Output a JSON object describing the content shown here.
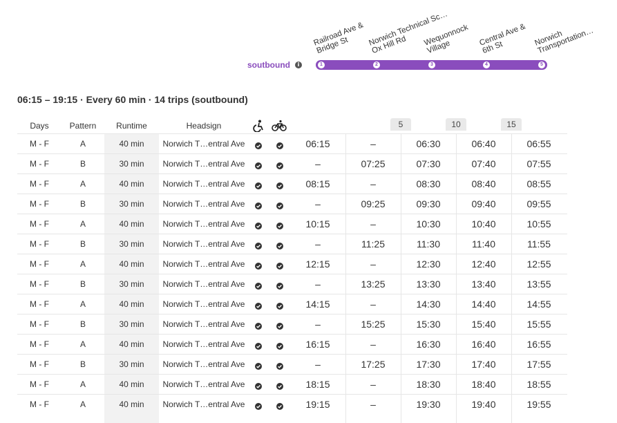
{
  "route": {
    "direction_label": "soutbound",
    "info_icon": "info-icon",
    "stops": [
      {
        "num": "1",
        "label_line1": "Railroad Ave &",
        "label_line2": "Bridge St"
      },
      {
        "num": "2",
        "label_line1": "Norwich Technical Sc…",
        "label_line2": "Ox Hill Rd"
      },
      {
        "num": "3",
        "label_line1": "Wequonnock",
        "label_line2": "Village"
      },
      {
        "num": "4",
        "label_line1": "Central Ave &",
        "label_line2": "6th St"
      },
      {
        "num": "5",
        "label_line1": "Norwich",
        "label_line2": "Transportation…"
      }
    ],
    "accent_color": "#8a4dbd"
  },
  "summary": "06:15 – 19:15 · Every 60 min · 14 trips (soutbound)",
  "table": {
    "headers": {
      "days": "Days",
      "pattern": "Pattern",
      "runtime": "Runtime",
      "headsign": "Headsign",
      "wheelchair_icon": "wheelchair-icon",
      "bike_icon": "bicycle-icon"
    },
    "ticks": [
      "5",
      "10",
      "15"
    ],
    "rows": [
      {
        "days": "M - F",
        "pattern": "A",
        "runtime": "40 min",
        "headsign": "Norwich T…entral Ave",
        "t1": "06:15",
        "t2": "–",
        "t3": "06:30",
        "t4": "06:40",
        "t5": "06:55"
      },
      {
        "days": "M - F",
        "pattern": "B",
        "runtime": "30 min",
        "headsign": "Norwich T…entral Ave",
        "t1": "–",
        "t2": "07:25",
        "t3": "07:30",
        "t4": "07:40",
        "t5": "07:55"
      },
      {
        "days": "M - F",
        "pattern": "A",
        "runtime": "40 min",
        "headsign": "Norwich T…entral Ave",
        "t1": "08:15",
        "t2": "–",
        "t3": "08:30",
        "t4": "08:40",
        "t5": "08:55"
      },
      {
        "days": "M - F",
        "pattern": "B",
        "runtime": "30 min",
        "headsign": "Norwich T…entral Ave",
        "t1": "–",
        "t2": "09:25",
        "t3": "09:30",
        "t4": "09:40",
        "t5": "09:55"
      },
      {
        "days": "M - F",
        "pattern": "A",
        "runtime": "40 min",
        "headsign": "Norwich T…entral Ave",
        "t1": "10:15",
        "t2": "–",
        "t3": "10:30",
        "t4": "10:40",
        "t5": "10:55"
      },
      {
        "days": "M - F",
        "pattern": "B",
        "runtime": "30 min",
        "headsign": "Norwich T…entral Ave",
        "t1": "–",
        "t2": "11:25",
        "t3": "11:30",
        "t4": "11:40",
        "t5": "11:55"
      },
      {
        "days": "M - F",
        "pattern": "A",
        "runtime": "40 min",
        "headsign": "Norwich T…entral Ave",
        "t1": "12:15",
        "t2": "–",
        "t3": "12:30",
        "t4": "12:40",
        "t5": "12:55"
      },
      {
        "days": "M - F",
        "pattern": "B",
        "runtime": "30 min",
        "headsign": "Norwich T…entral Ave",
        "t1": "–",
        "t2": "13:25",
        "t3": "13:30",
        "t4": "13:40",
        "t5": "13:55"
      },
      {
        "days": "M - F",
        "pattern": "A",
        "runtime": "40 min",
        "headsign": "Norwich T…entral Ave",
        "t1": "14:15",
        "t2": "–",
        "t3": "14:30",
        "t4": "14:40",
        "t5": "14:55"
      },
      {
        "days": "M - F",
        "pattern": "B",
        "runtime": "30 min",
        "headsign": "Norwich T…entral Ave",
        "t1": "–",
        "t2": "15:25",
        "t3": "15:30",
        "t4": "15:40",
        "t5": "15:55"
      },
      {
        "days": "M - F",
        "pattern": "A",
        "runtime": "40 min",
        "headsign": "Norwich T…entral Ave",
        "t1": "16:15",
        "t2": "–",
        "t3": "16:30",
        "t4": "16:40",
        "t5": "16:55"
      },
      {
        "days": "M - F",
        "pattern": "B",
        "runtime": "30 min",
        "headsign": "Norwich T…entral Ave",
        "t1": "–",
        "t2": "17:25",
        "t3": "17:30",
        "t4": "17:40",
        "t5": "17:55"
      },
      {
        "days": "M - F",
        "pattern": "A",
        "runtime": "40 min",
        "headsign": "Norwich T…entral Ave",
        "t1": "18:15",
        "t2": "–",
        "t3": "18:30",
        "t4": "18:40",
        "t5": "18:55"
      },
      {
        "days": "M - F",
        "pattern": "A",
        "runtime": "40 min",
        "headsign": "Norwich T…entral Ave",
        "t1": "19:15",
        "t2": "–",
        "t3": "19:30",
        "t4": "19:40",
        "t5": "19:55"
      }
    ]
  }
}
